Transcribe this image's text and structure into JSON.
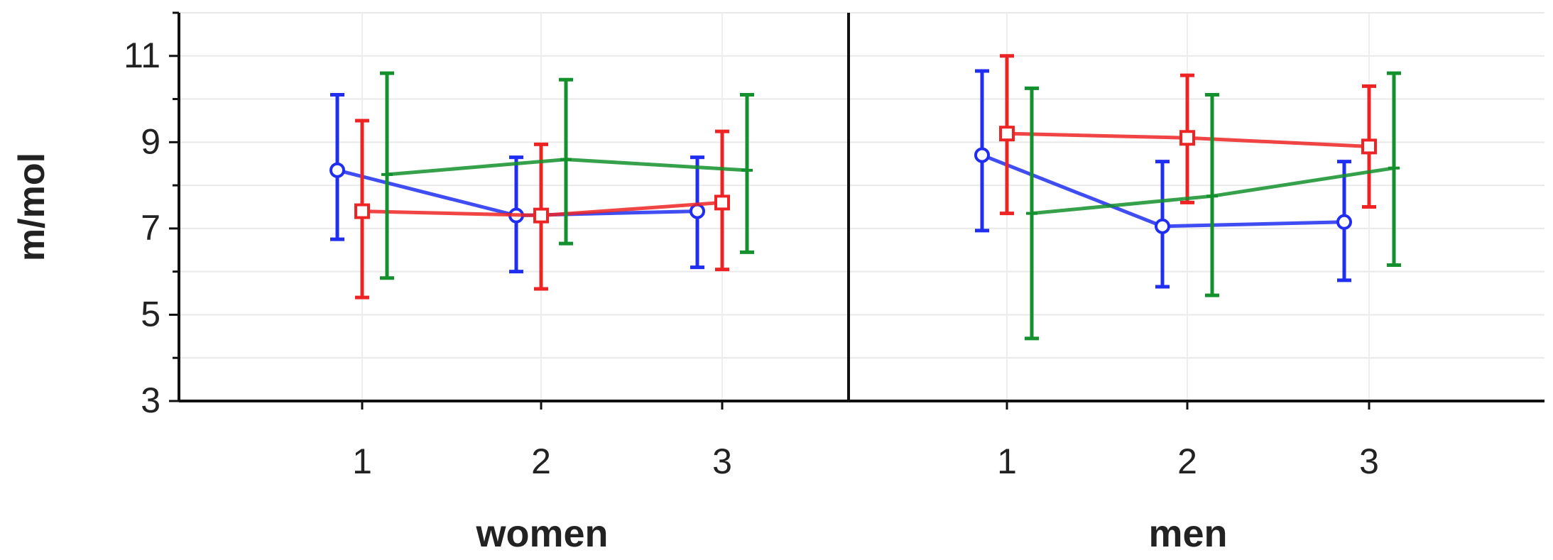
{
  "chart_data": {
    "type": "line",
    "ylabel": "m/mol",
    "ylim": [
      3,
      12
    ],
    "yticks": [
      3,
      5,
      7,
      9,
      11
    ],
    "grid": true,
    "panels": [
      {
        "name": "women",
        "categories": [
          "1",
          "2",
          "3"
        ],
        "series": [
          {
            "color": "#1f2ef0",
            "marker": "circle",
            "values": [
              8.35,
              7.3,
              7.4
            ],
            "lower": [
              6.75,
              6.0,
              6.1
            ],
            "upper": [
              10.1,
              8.65,
              8.65
            ]
          },
          {
            "color": "#ee2424",
            "marker": "square",
            "values": [
              7.4,
              7.3,
              7.6
            ],
            "lower": [
              5.4,
              5.6,
              6.05
            ],
            "upper": [
              9.5,
              8.95,
              9.25
            ]
          },
          {
            "color": "#13912c",
            "marker": "plus",
            "values": [
              8.25,
              8.6,
              8.35
            ],
            "lower": [
              5.85,
              6.65,
              6.45
            ],
            "upper": [
              10.6,
              10.45,
              10.1
            ]
          }
        ]
      },
      {
        "name": "men",
        "categories": [
          "1",
          "2",
          "3"
        ],
        "series": [
          {
            "color": "#1f2ef0",
            "marker": "circle",
            "values": [
              8.7,
              7.05,
              7.15
            ],
            "lower": [
              6.95,
              5.65,
              5.8
            ],
            "upper": [
              10.65,
              8.55,
              8.55
            ]
          },
          {
            "color": "#ee2424",
            "marker": "square",
            "values": [
              9.2,
              9.1,
              8.9
            ],
            "lower": [
              7.35,
              7.6,
              7.5
            ],
            "upper": [
              11.0,
              10.55,
              10.3
            ]
          },
          {
            "color": "#13912c",
            "marker": "plus",
            "values": [
              7.35,
              7.75,
              8.4
            ],
            "lower": [
              4.45,
              5.45,
              6.15
            ],
            "upper": [
              10.25,
              10.1,
              10.6
            ]
          }
        ]
      }
    ]
  }
}
